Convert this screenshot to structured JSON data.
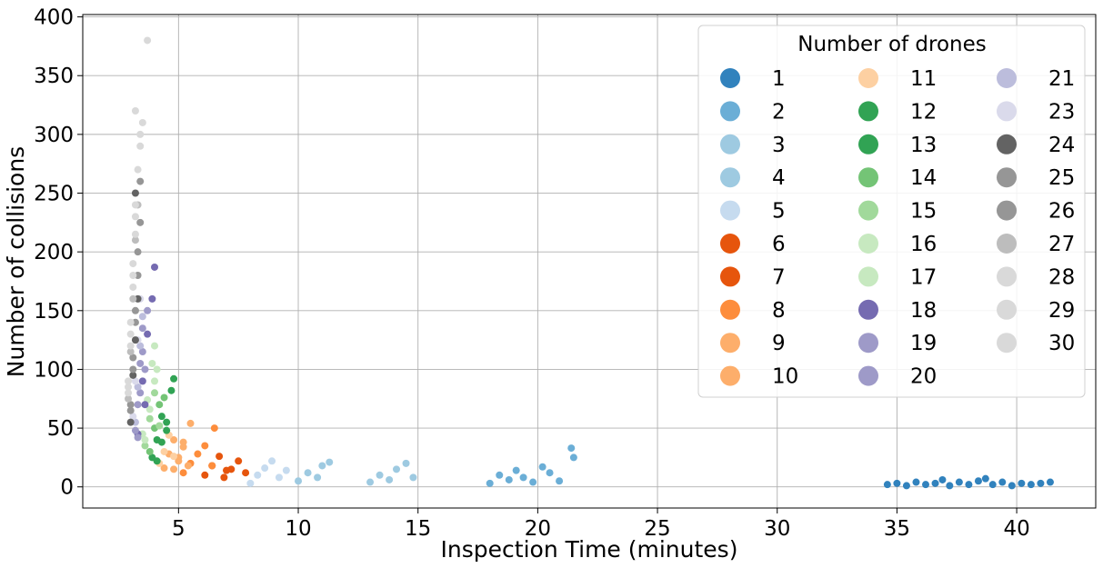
{
  "chart_data": {
    "type": "scatter",
    "title": "",
    "xlabel": "Inspection Time (minutes)",
    "ylabel": "Number of collisions",
    "xlim": [
      1.0,
      43.3
    ],
    "ylim": [
      -18,
      402
    ],
    "xticks": [
      5,
      10,
      15,
      20,
      25,
      30,
      35,
      40
    ],
    "yticks": [
      0,
      50,
      100,
      150,
      200,
      250,
      300,
      350,
      400
    ],
    "grid": true,
    "legend": {
      "title": "Number of drones",
      "placement": "top-right",
      "columns": 3
    },
    "series": [
      {
        "name": "1",
        "color": "#3182bd",
        "x": [
          34.6,
          35.0,
          35.4,
          35.8,
          36.2,
          36.6,
          36.9,
          37.2,
          37.6,
          38.0,
          38.4,
          38.7,
          39.0,
          39.4,
          39.8,
          40.2,
          40.6,
          41.0,
          41.4
        ],
        "y": [
          2,
          3,
          1,
          4,
          2,
          3,
          6,
          1,
          4,
          2,
          5,
          7,
          2,
          4,
          1,
          3,
          2,
          3,
          4
        ]
      },
      {
        "name": "2",
        "color": "#6baed6",
        "x": [
          18.0,
          18.4,
          18.8,
          19.1,
          19.4,
          19.8,
          20.2,
          20.5,
          20.9,
          21.4,
          21.5
        ],
        "y": [
          3,
          10,
          6,
          14,
          8,
          4,
          17,
          12,
          5,
          33,
          25
        ]
      },
      {
        "name": "3",
        "color": "#9ecae1",
        "x": [
          13.0,
          13.4,
          13.8,
          14.1,
          14.5,
          14.8
        ],
        "y": [
          4,
          10,
          6,
          15,
          20,
          8
        ]
      },
      {
        "name": "4",
        "color": "#9ecae1",
        "x": [
          10.0,
          10.4,
          10.8,
          11.0,
          11.3
        ],
        "y": [
          5,
          12,
          8,
          18,
          21
        ]
      },
      {
        "name": "5",
        "color": "#c6dbef",
        "x": [
          8.0,
          8.3,
          8.6,
          8.9,
          9.2,
          9.5
        ],
        "y": [
          3,
          10,
          16,
          22,
          8,
          14
        ]
      },
      {
        "name": "6",
        "color": "#e6550d",
        "x": [
          6.9,
          7.2,
          7.5,
          7.8
        ],
        "y": [
          8,
          15,
          22,
          12
        ]
      },
      {
        "name": "7",
        "color": "#e6550d",
        "x": [
          6.1,
          6.4,
          6.7,
          7.0
        ],
        "y": [
          10,
          18,
          26,
          14
        ]
      },
      {
        "name": "8",
        "color": "#fd8d3c",
        "x": [
          5.2,
          5.5,
          5.8,
          6.1,
          6.4,
          6.5
        ],
        "y": [
          12,
          20,
          28,
          35,
          18,
          50
        ]
      },
      {
        "name": "9",
        "color": "#fdae6b",
        "x": [
          4.8,
          5.0,
          5.2,
          5.4,
          5.5
        ],
        "y": [
          15,
          25,
          38,
          18,
          54
        ]
      },
      {
        "name": "10",
        "color": "#fdae6b",
        "x": [
          4.4,
          4.6,
          4.8,
          5.0,
          5.2
        ],
        "y": [
          16,
          28,
          40,
          22,
          34
        ]
      },
      {
        "name": "11",
        "color": "#fdd0a2",
        "x": [
          4.2,
          4.4,
          4.6,
          4.8
        ],
        "y": [
          20,
          30,
          44,
          26
        ]
      },
      {
        "name": "12",
        "color": "#31a354",
        "x": [
          4.1,
          4.3,
          4.5,
          4.7,
          4.8
        ],
        "y": [
          22,
          38,
          55,
          82,
          92
        ]
      },
      {
        "name": "13",
        "color": "#31a354",
        "x": [
          3.9,
          4.1,
          4.3,
          4.5
        ],
        "y": [
          25,
          40,
          60,
          48
        ]
      },
      {
        "name": "14",
        "color": "#74c476",
        "x": [
          3.8,
          4.0,
          4.2,
          4.4
        ],
        "y": [
          30,
          50,
          70,
          76
        ]
      },
      {
        "name": "15",
        "color": "#a1d99b",
        "x": [
          3.6,
          3.8,
          4.0,
          4.2
        ],
        "y": [
          35,
          58,
          80,
          52
        ]
      },
      {
        "name": "16",
        "color": "#c7e9c0",
        "x": [
          3.6,
          3.8,
          4.0,
          4.1
        ],
        "y": [
          40,
          66,
          90,
          100
        ]
      },
      {
        "name": "17",
        "color": "#c7e9c0",
        "x": [
          3.5,
          3.7,
          3.9,
          4.0
        ],
        "y": [
          45,
          74,
          105,
          120
        ]
      },
      {
        "name": "18",
        "color": "#756bb1",
        "x": [
          3.3,
          3.5,
          3.7,
          3.9,
          4.0,
          3.6
        ],
        "y": [
          45,
          90,
          130,
          160,
          187,
          70
        ]
      },
      {
        "name": "19",
        "color": "#9e9ac8",
        "x": [
          3.3,
          3.4,
          3.5,
          3.7,
          3.6
        ],
        "y": [
          42,
          80,
          115,
          150,
          100
        ]
      },
      {
        "name": "20",
        "color": "#9e9ac8",
        "x": [
          3.2,
          3.3,
          3.4,
          3.5
        ],
        "y": [
          48,
          70,
          105,
          135
        ]
      },
      {
        "name": "21",
        "color": "#bcbddc",
        "x": [
          3.2,
          3.3,
          3.4,
          3.5
        ],
        "y": [
          55,
          85,
          120,
          145
        ]
      },
      {
        "name": "23",
        "color": "#dadaeb",
        "x": [
          3.1,
          3.2,
          3.3,
          3.4
        ],
        "y": [
          60,
          90,
          125,
          160
        ]
      },
      {
        "name": "24",
        "color": "#636363",
        "x": [
          3.0,
          3.1,
          3.2,
          3.3,
          3.2
        ],
        "y": [
          55,
          95,
          125,
          160,
          250
        ]
      },
      {
        "name": "25",
        "color": "#969696",
        "x": [
          3.0,
          3.1,
          3.2,
          3.3,
          3.4
        ],
        "y": [
          65,
          100,
          140,
          180,
          225
        ]
      },
      {
        "name": "26",
        "color": "#969696",
        "x": [
          3.0,
          3.1,
          3.2,
          3.3,
          3.4
        ],
        "y": [
          70,
          110,
          150,
          200,
          260
        ]
      },
      {
        "name": "27",
        "color": "#bdbdbd",
        "x": [
          2.9,
          3.0,
          3.1,
          3.2,
          3.3
        ],
        "y": [
          75,
          115,
          160,
          210,
          240
        ]
      },
      {
        "name": "28",
        "color": "#d9d9d9",
        "x": [
          2.9,
          3.0,
          3.1,
          3.2,
          3.3
        ],
        "y": [
          80,
          120,
          170,
          215,
          270
        ]
      },
      {
        "name": "29",
        "color": "#d9d9d9",
        "x": [
          2.9,
          3.0,
          3.1,
          3.2,
          3.4
        ],
        "y": [
          85,
          130,
          180,
          230,
          290
        ]
      },
      {
        "name": "30",
        "color": "#d9d9d9",
        "x": [
          2.9,
          3.0,
          3.1,
          3.2,
          3.4,
          3.5,
          3.7,
          3.2
        ],
        "y": [
          90,
          140,
          190,
          240,
          300,
          310,
          380,
          320
        ]
      }
    ]
  }
}
